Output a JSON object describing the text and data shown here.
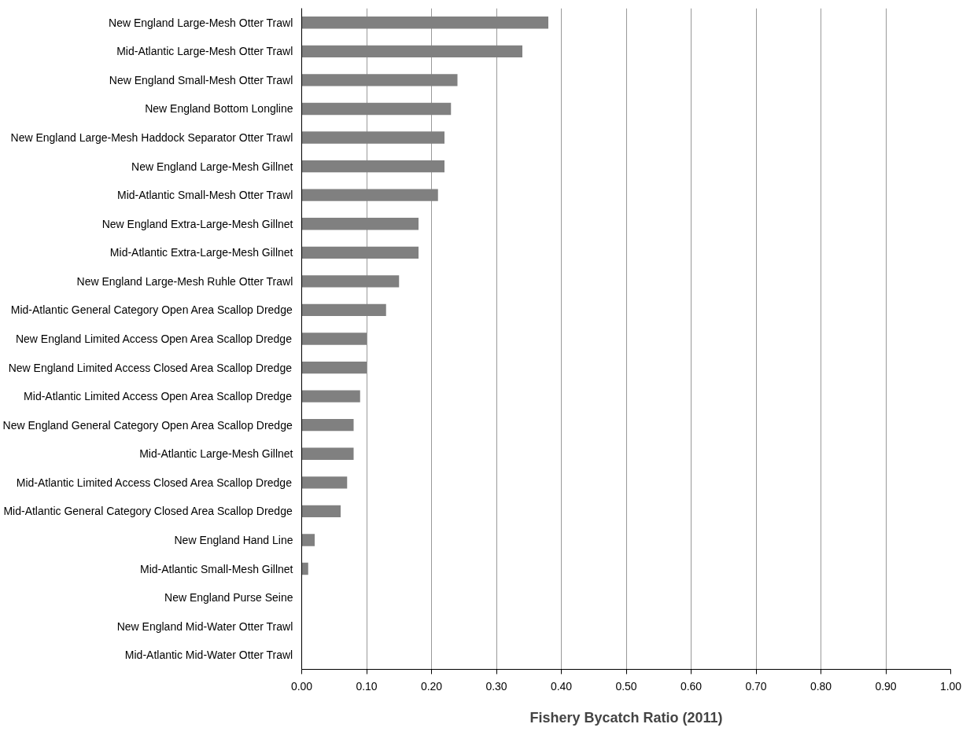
{
  "chart_data": {
    "type": "bar",
    "orientation": "horizontal",
    "xlabel": "Fishery Bycatch Ratio (2011)",
    "categories": [
      "New England Large-Mesh Otter Trawl",
      "Mid-Atlantic Large-Mesh Otter Trawl",
      "New England Small-Mesh Otter Trawl",
      "New England Bottom Longline",
      "New England Large-Mesh Haddock Separator Otter Trawl",
      "New England Large-Mesh Gillnet",
      "Mid-Atlantic Small-Mesh Otter Trawl",
      "New England Extra-Large-Mesh Gillnet",
      "Mid-Atlantic Extra-Large-Mesh Gillnet",
      "New England Large-Mesh Ruhle Otter Trawl",
      "Mid-Atlantic General Category Open Area Scallop Dredge",
      "New England Limited Access Open Area Scallop Dredge",
      "New England Limited Access Closed Area Scallop Dredge",
      "Mid-Atlantic Limited Access Open Area Scallop Dredge",
      "New England General Category Open Area Scallop Dredge",
      "Mid-Atlantic Large-Mesh Gillnet",
      "Mid-Atlantic Limited Access Closed Area Scallop Dredge",
      "Mid-Atlantic General Category Closed Area Scallop Dredge",
      "New England Hand Line",
      "Mid-Atlantic Small-Mesh Gillnet",
      "New England Purse Seine",
      "New England Mid-Water Otter Trawl",
      "Mid-Atlantic Mid-Water Otter Trawl"
    ],
    "values": [
      0.38,
      0.34,
      0.24,
      0.23,
      0.22,
      0.22,
      0.21,
      0.18,
      0.18,
      0.15,
      0.13,
      0.1,
      0.1,
      0.09,
      0.08,
      0.08,
      0.07,
      0.06,
      0.02,
      0.01,
      0,
      0,
      0
    ],
    "color": "#808080",
    "xlim": [
      0,
      1
    ],
    "xticks": [
      {
        "value": 0,
        "label": "0.00"
      },
      {
        "value": 0.1,
        "label": "0.10"
      },
      {
        "value": 0.2,
        "label": "0.20"
      },
      {
        "value": 0.3,
        "label": "0.30"
      },
      {
        "value": 0.4,
        "label": "0.40"
      },
      {
        "value": 0.5,
        "label": "0.50"
      },
      {
        "value": 0.6,
        "label": "0.60"
      },
      {
        "value": 0.7,
        "label": "0.70"
      },
      {
        "value": 0.8,
        "label": "0.80"
      },
      {
        "value": 0.9,
        "label": "0.90"
      },
      {
        "value": 1,
        "label": "1.00"
      }
    ],
    "grid": "x"
  }
}
